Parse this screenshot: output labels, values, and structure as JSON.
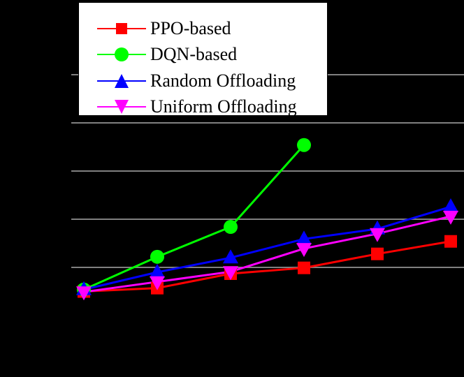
{
  "chart_data": {
    "type": "line",
    "title": "",
    "xlabel": "",
    "ylabel": "",
    "grid": true,
    "legend_position": "upper left",
    "x_index": [
      1,
      2,
      3,
      4,
      5,
      6
    ],
    "ylim": [
      0,
      5
    ],
    "y_gridlines": [
      1,
      2,
      3,
      4,
      5
    ],
    "note": "Axis tick labels not visible (black on black); values expressed in gridline units",
    "series": [
      {
        "name": "PPO-based",
        "color": "#ff0000",
        "marker": "square",
        "values": [
          0.5,
          0.57,
          0.87,
          0.99,
          1.28,
          1.54
        ]
      },
      {
        "name": "DQN-based",
        "color": "#00ff00",
        "marker": "circle",
        "values": [
          0.54,
          1.22,
          1.84,
          3.54,
          null,
          null
        ]
      },
      {
        "name": "Random Offloading",
        "color": "#0000ff",
        "marker": "triangle-up",
        "values": [
          0.54,
          0.9,
          1.2,
          1.59,
          1.8,
          2.26
        ]
      },
      {
        "name": "Uniform Offloading",
        "color": "#ff00ff",
        "marker": "triangle-down",
        "values": [
          0.49,
          0.7,
          0.91,
          1.39,
          1.7,
          2.06
        ]
      }
    ]
  },
  "legend": {
    "items": [
      {
        "label": "PPO-based"
      },
      {
        "label": "DQN-based"
      },
      {
        "label": "Random Offloading"
      },
      {
        "label": "Uniform Offloading"
      }
    ]
  },
  "colors": {
    "background": "#000000",
    "grid": "#808080"
  }
}
